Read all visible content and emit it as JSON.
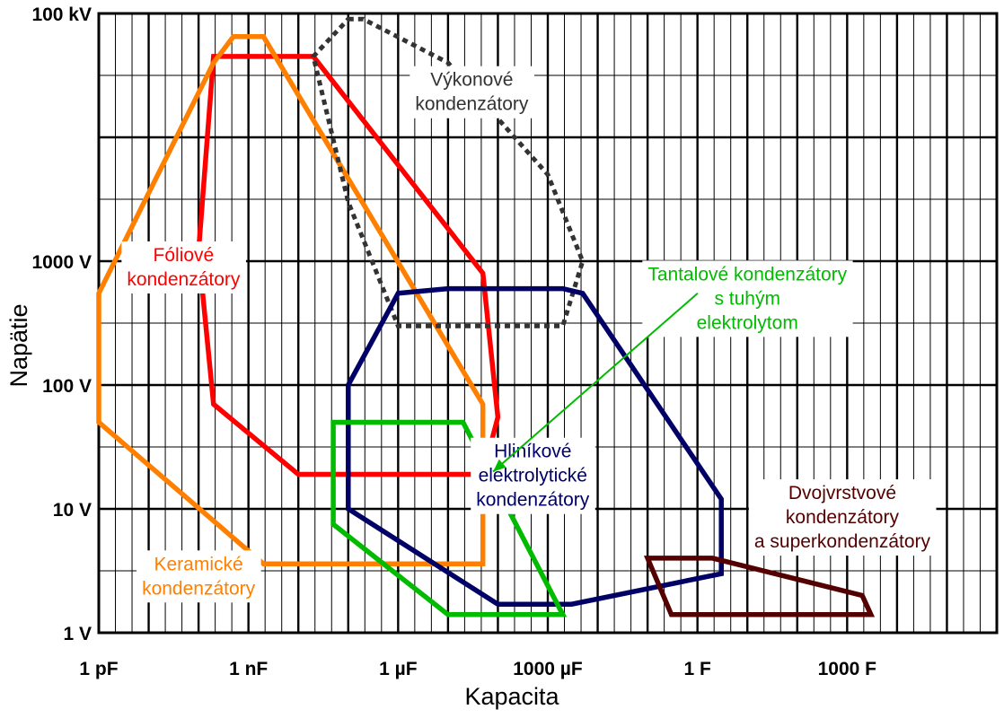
{
  "chart_data": {
    "type": "area",
    "title": "",
    "xlabel": "Kapacita",
    "ylabel": "Napätie",
    "x_scale": "log",
    "y_scale": "log",
    "x_unit": "F",
    "y_unit": "V",
    "xlim": [
      1e-12,
      1000000.0
    ],
    "ylim": [
      1,
      100000
    ],
    "x_ticks": [
      {
        "value": 1e-12,
        "label": "1 pF"
      },
      {
        "value": 1e-09,
        "label": "1 nF"
      },
      {
        "value": 1e-06,
        "label": "1 µF"
      },
      {
        "value": 0.001,
        "label": "1000 µF"
      },
      {
        "value": 1,
        "label": "1 F"
      },
      {
        "value": 1000,
        "label": "1000 F"
      }
    ],
    "y_ticks": [
      {
        "value": 1,
        "label": "1 V"
      },
      {
        "value": 10,
        "label": "10 V"
      },
      {
        "value": 100,
        "label": "100 V"
      },
      {
        "value": 1000,
        "label": "1000 V"
      },
      {
        "value": 100000,
        "label": "100 kV"
      }
    ],
    "grid": true,
    "series": [
      {
        "name": "Fóliové kondenzátory",
        "color": "#ff0000",
        "style": "solid",
        "label_lines": [
          "Fóliové",
          "kondenzátory"
        ],
        "label_anchor": {
          "x": 5e-11,
          "y": 1000
        },
        "points": [
          [
            2e-10,
            45000
          ],
          [
            2e-08,
            45000
          ],
          [
            5e-05,
            800
          ],
          [
            0.0001,
            55
          ],
          [
            5e-05,
            19
          ],
          [
            1e-08,
            19
          ],
          [
            2e-10,
            70
          ],
          [
            1e-10,
            1200
          ]
        ]
      },
      {
        "name": "Keramické kondenzátory",
        "color": "#ff8000",
        "style": "solid",
        "label_lines": [
          "Keramické",
          "kondenzátory"
        ],
        "label_anchor": {
          "x": 1e-10,
          "y": 3.2
        },
        "points": [
          [
            1e-12,
            550
          ],
          [
            2e-10,
            40000
          ],
          [
            5e-10,
            65000
          ],
          [
            2e-09,
            65000
          ],
          [
            5e-05,
            70
          ],
          [
            5e-05,
            3.6
          ],
          [
            2e-09,
            3.6
          ],
          [
            1e-12,
            50
          ]
        ]
      },
      {
        "name": "Výkonové kondenzátory",
        "color": "#333333",
        "style": "dotted",
        "label_lines": [
          "Výkonové",
          "kondenzátory"
        ],
        "label_anchor": {
          "x": 3e-05,
          "y": 26000
        },
        "points": [
          [
            1e-07,
            90000
          ],
          [
            2e-07,
            90000
          ],
          [
            1e-05,
            40000
          ],
          [
            0.001,
            5000
          ],
          [
            0.005,
            1000
          ],
          [
            0.002,
            300
          ],
          [
            1e-06,
            300
          ],
          [
            1e-07,
            3000
          ],
          [
            2e-08,
            45000
          ]
        ]
      },
      {
        "name": "Hliníkové elektrolytické kondenzátory",
        "color": "#000066",
        "style": "solid",
        "label_lines": [
          "Hliníkové",
          "elektrolytické",
          "kondenzátory"
        ],
        "label_anchor": {
          "x": 0.0005,
          "y": 26
        },
        "points": [
          [
            1e-06,
            550
          ],
          [
            1e-05,
            600
          ],
          [
            0.002,
            600
          ],
          [
            0.005,
            550
          ],
          [
            3,
            12
          ],
          [
            3,
            3
          ],
          [
            0.003,
            1.7
          ],
          [
            0.0001,
            1.7
          ],
          [
            1e-07,
            10
          ],
          [
            1e-07,
            100
          ]
        ]
      },
      {
        "name": "Tantalové kondenzátory s tuhým elektrolytom",
        "color": "#00bb00",
        "style": "solid",
        "label_lines": [
          "Tantalové kondenzátory",
          "s  tuhým",
          "elektrolytom"
        ],
        "label_anchor": {
          "x": 10,
          "y": 700
        },
        "arrow_to": {
          "x": 8e-05,
          "y": 20
        },
        "points": [
          [
            5e-08,
            50
          ],
          [
            2e-05,
            50
          ],
          [
            0.002,
            1.4
          ],
          [
            1e-05,
            1.4
          ],
          [
            5e-08,
            7.5
          ]
        ]
      },
      {
        "name": "Dvojvrstvové kondenzátory a superkondenzátory",
        "color": "#550000",
        "style": "solid",
        "label_lines": [
          "Dvojvrstvové",
          "kondenzátory",
          "a superkondenzátory"
        ],
        "label_anchor": {
          "x": 800,
          "y": 12
        },
        "points": [
          [
            0.1,
            4
          ],
          [
            2,
            4
          ],
          [
            2000,
            2
          ],
          [
            3000,
            1.4
          ],
          [
            0.3,
            1.4
          ]
        ]
      }
    ]
  }
}
